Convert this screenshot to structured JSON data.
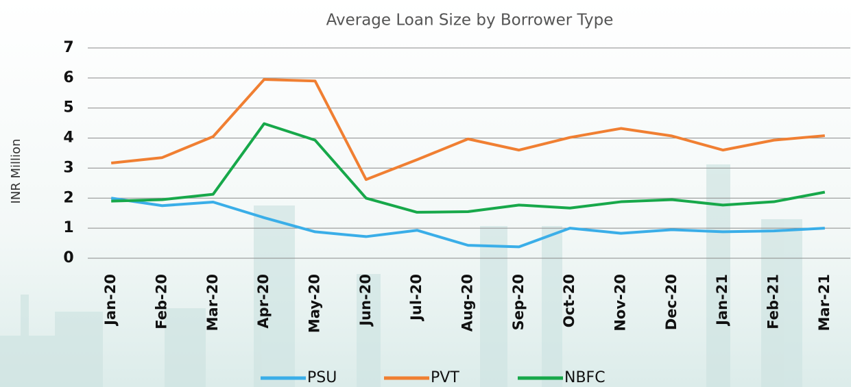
{
  "chart_data": {
    "type": "line",
    "title": "Average Loan Size by Borrower Type",
    "ylabel": "INR Million",
    "categories": [
      "Jan-20",
      "Feb-20",
      "Mar-20",
      "Apr-20",
      "May-20",
      "Jun-20",
      "Jul-20",
      "Aug-20",
      "Sep-20",
      "Oct-20",
      "Nov-20",
      "Dec-20",
      "Jan-21",
      "Feb-21",
      "Mar-21"
    ],
    "series": [
      {
        "name": "PSU",
        "color": "#3aaee8",
        "values": [
          2.0,
          1.75,
          1.87,
          1.35,
          0.88,
          0.72,
          0.93,
          0.43,
          0.38,
          1.0,
          0.83,
          0.95,
          0.88,
          0.91,
          1.0
        ]
      },
      {
        "name": "PVT",
        "color": "#f07f32",
        "values": [
          3.17,
          3.35,
          4.05,
          5.95,
          5.9,
          2.62,
          3.28,
          3.97,
          3.6,
          4.02,
          4.32,
          4.07,
          3.6,
          3.93,
          4.08
        ]
      },
      {
        "name": "NBFC",
        "color": "#17a84a",
        "values": [
          1.9,
          1.95,
          2.13,
          4.48,
          3.93,
          2.0,
          1.53,
          1.55,
          1.77,
          1.67,
          1.88,
          1.95,
          1.77,
          1.88,
          2.2
        ]
      }
    ],
    "ylim": [
      0,
      7
    ],
    "yticks": [
      0,
      1,
      2,
      3,
      4,
      5,
      6,
      7
    ],
    "grid": true,
    "legend": "bottom"
  }
}
